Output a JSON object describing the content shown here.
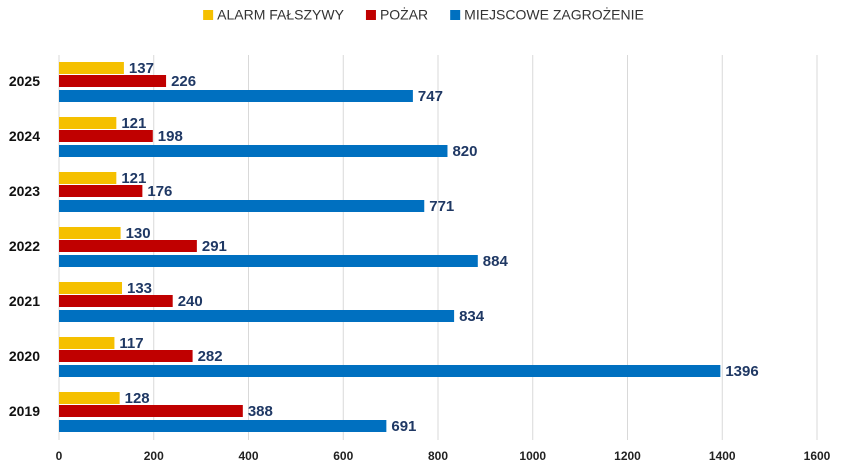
{
  "chart_data": {
    "type": "barh",
    "categories": [
      "2025",
      "2024",
      "2023",
      "2022",
      "2021",
      "2020",
      "2019"
    ],
    "series": [
      {
        "name": "ALARM FAŁSZYWY",
        "color": "#f5c000",
        "values": [
          137,
          121,
          121,
          130,
          133,
          117,
          128
        ]
      },
      {
        "name": "POŻAR",
        "color": "#c00000",
        "values": [
          226,
          198,
          176,
          291,
          240,
          282,
          388
        ]
      },
      {
        "name": "MIEJSCOWE ZAGROŻENIE",
        "color": "#0070c0",
        "values": [
          747,
          820,
          771,
          884,
          834,
          1396,
          691
        ]
      }
    ],
    "xlim": [
      0,
      1600
    ],
    "xticks": [
      0,
      200,
      400,
      600,
      800,
      1000,
      1200,
      1400,
      1600
    ],
    "grid": true,
    "legend": "top"
  }
}
